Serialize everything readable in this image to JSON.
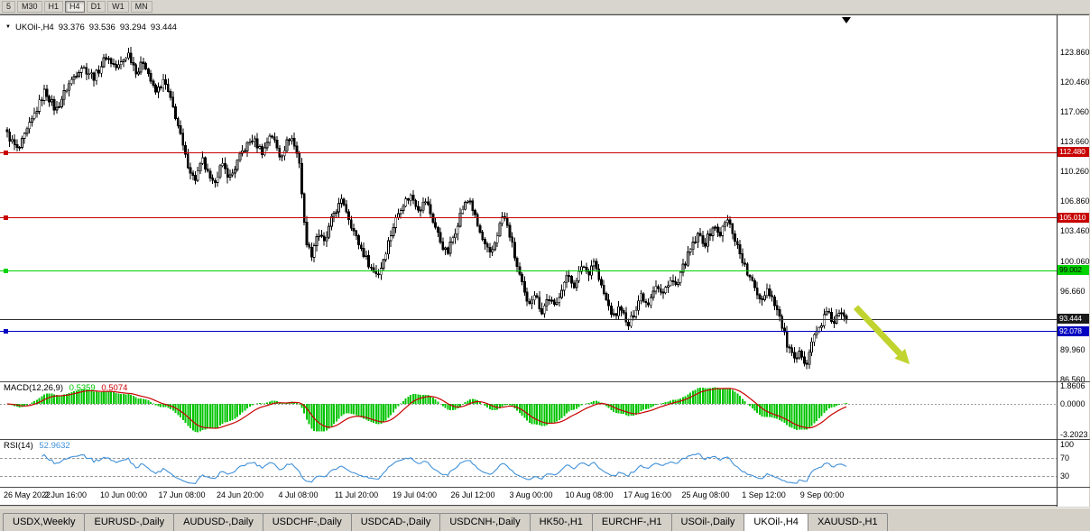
{
  "toolbar": {
    "buttons": [
      {
        "label": "5",
        "active": false
      },
      {
        "label": "M30",
        "active": false
      },
      {
        "label": "H1",
        "active": false
      },
      {
        "label": "H4",
        "active": true
      },
      {
        "label": "D1",
        "active": false
      },
      {
        "label": "W1",
        "active": false
      },
      {
        "label": "MN",
        "active": false
      }
    ]
  },
  "icons": {
    "dropdown": "▼"
  },
  "chart": {
    "symbol_line": {
      "symbol": "UKOil-,H4",
      "open": "93.376",
      "high": "93.536",
      "low": "93.294",
      "close": "93.444"
    }
  },
  "price_axis": {
    "ticks": [
      {
        "label": "123.860",
        "value": 123.86
      },
      {
        "label": "120.460",
        "value": 120.46
      },
      {
        "label": "117.060",
        "value": 117.06
      },
      {
        "label": "113.660",
        "value": 113.66
      },
      {
        "label": "110.260",
        "value": 110.26
      },
      {
        "label": "106.860",
        "value": 106.86
      },
      {
        "label": "103.460",
        "value": 103.46
      },
      {
        "label": "100.060",
        "value": 100.06
      },
      {
        "label": "96.660",
        "value": 96.66
      },
      {
        "label": "89.960",
        "value": 89.96
      },
      {
        "label": "86.560",
        "value": 86.56
      }
    ]
  },
  "hlines": [
    {
      "name": "resistance-upper",
      "label": "112.480",
      "value": 112.48,
      "line_color": "#c80000",
      "badge_bg": "#c80000",
      "text_color": "#ffffff",
      "handle": true
    },
    {
      "name": "resistance-lower",
      "label": "105.010",
      "value": 105.01,
      "line_color": "#c80000",
      "badge_bg": "#c80000",
      "text_color": "#ffffff",
      "handle": true
    },
    {
      "name": "support-green",
      "label": "99.002",
      "value": 99.002,
      "line_color": "#00d200",
      "badge_bg": "#00d200",
      "text_color": "#000000",
      "handle": true
    },
    {
      "name": "current-price",
      "label": "93.444",
      "value": 93.444,
      "line_color": "#2e2e2e",
      "badge_bg": "#1a1a1a",
      "text_color": "#ffffff",
      "handle": false
    },
    {
      "name": "support-blue",
      "label": "92.078",
      "value": 92.078,
      "line_color": "#0000c0",
      "badge_bg": "#0000c0",
      "text_color": "#ffffff",
      "handle": true
    }
  ],
  "macd": {
    "name_label": "MACD(12,26,9)",
    "main_value": "0.5359",
    "signal_value": "0.5074",
    "ticks": [
      {
        "label": "1.8606",
        "value": 1.8606
      },
      {
        "label": "0.0000",
        "value": 0.0
      },
      {
        "label": "-3.2023",
        "value": -3.2023
      }
    ]
  },
  "rsi": {
    "name_label": "RSI(14)",
    "value": "52.9632",
    "levels": [
      70,
      30
    ],
    "ticks": [
      {
        "label": "100",
        "value": 100
      },
      {
        "label": "70",
        "value": 70
      },
      {
        "label": "30",
        "value": 30
      }
    ]
  },
  "time_axis": {
    "labels": [
      "26 May 2022",
      "2 Jun 16:00",
      "10 Jun 00:00",
      "17 Jun 08:00",
      "24 Jun 20:00",
      "4 Jul 08:00",
      "11 Jul 20:00",
      "19 Jul 04:00",
      "26 Jul 12:00",
      "3 Aug 00:00",
      "10 Aug 08:00",
      "17 Aug 16:00",
      "25 Aug 08:00",
      "1 Sep 12:00",
      "9 Sep 00:00"
    ]
  },
  "tabs": {
    "items": [
      {
        "label": "USDX,Weekly",
        "active": false
      },
      {
        "label": "EURUSD-,Daily",
        "active": false
      },
      {
        "label": "AUDUSD-,Daily",
        "active": false
      },
      {
        "label": "USDCHF-,Daily",
        "active": false
      },
      {
        "label": "USDCAD-,Daily",
        "active": false
      },
      {
        "label": "USDCNH-,Daily",
        "active": false
      },
      {
        "label": "HK50-,H1",
        "active": false
      },
      {
        "label": "EURCHF-,H1",
        "active": false
      },
      {
        "label": "USOil-,Daily",
        "active": false
      },
      {
        "label": "UKOil-,H4",
        "active": true
      },
      {
        "label": "XAUUSD-,H1",
        "active": false
      }
    ]
  },
  "annotation_arrow": {
    "color": "#c1d32f",
    "direction": "down-right",
    "from": {
      "x": 0.81,
      "price": 94.8
    },
    "to": {
      "x": 0.861,
      "price": 88.3
    }
  },
  "colors": {
    "hist_green": "#00c400",
    "signal_red": "#c80000",
    "rsi_blue": "#4090d8",
    "candle": "#000000",
    "background": "#ffffff",
    "frame_gray": "#d4d0c8"
  },
  "chart_data": {
    "type": "candlestick",
    "symbol": "UKOil-",
    "timeframe": "H4",
    "candle_count": 340,
    "ohlc_current": {
      "open": 93.376,
      "high": 93.536,
      "low": 93.294,
      "close": 93.444
    },
    "ylim": [
      86.0,
      128.0
    ],
    "series_span_fraction": 0.794,
    "horizontal_levels": [
      112.48,
      105.01,
      99.002,
      93.444,
      92.078
    ],
    "indicators": [
      {
        "name": "MACD",
        "params": [
          12,
          26,
          9
        ],
        "current_main": 0.5359,
        "current_signal": 0.5074,
        "scale_max": 1.8606,
        "scale_min": -3.2023
      },
      {
        "name": "RSI",
        "params": [
          14
        ],
        "current": 52.9632,
        "levels": [
          70,
          30
        ],
        "range": [
          0,
          100
        ]
      }
    ],
    "price_path_keyframes": [
      [
        0.0,
        114.5
      ],
      [
        0.013,
        112.6
      ],
      [
        0.029,
        116.0
      ],
      [
        0.045,
        119.5
      ],
      [
        0.058,
        117.2
      ],
      [
        0.072,
        120.0
      ],
      [
        0.088,
        122.3
      ],
      [
        0.104,
        121.0
      ],
      [
        0.118,
        123.4
      ],
      [
        0.131,
        122.0
      ],
      [
        0.144,
        123.8
      ],
      [
        0.155,
        121.5
      ],
      [
        0.163,
        123.0
      ],
      [
        0.176,
        119.2
      ],
      [
        0.187,
        120.6
      ],
      [
        0.201,
        116.5
      ],
      [
        0.212,
        112.0
      ],
      [
        0.223,
        109.2
      ],
      [
        0.233,
        111.5
      ],
      [
        0.244,
        108.6
      ],
      [
        0.255,
        111.0
      ],
      [
        0.266,
        109.6
      ],
      [
        0.28,
        112.5
      ],
      [
        0.292,
        114.0
      ],
      [
        0.305,
        112.4
      ],
      [
        0.314,
        114.8
      ],
      [
        0.325,
        112.0
      ],
      [
        0.338,
        114.4
      ],
      [
        0.348,
        111.5
      ],
      [
        0.355,
        103.0
      ],
      [
        0.362,
        100.6
      ],
      [
        0.37,
        103.4
      ],
      [
        0.378,
        102.0
      ],
      [
        0.389,
        105.5
      ],
      [
        0.4,
        107.0
      ],
      [
        0.409,
        104.5
      ],
      [
        0.417,
        102.4
      ],
      [
        0.427,
        100.5
      ],
      [
        0.435,
        99.0
      ],
      [
        0.443,
        98.6
      ],
      [
        0.452,
        101.5
      ],
      [
        0.46,
        104.0
      ],
      [
        0.47,
        106.5
      ],
      [
        0.481,
        107.5
      ],
      [
        0.491,
        106.0
      ],
      [
        0.499,
        107.0
      ],
      [
        0.508,
        104.5
      ],
      [
        0.516,
        102.4
      ],
      [
        0.524,
        100.8
      ],
      [
        0.532,
        103.0
      ],
      [
        0.542,
        106.0
      ],
      [
        0.551,
        107.2
      ],
      [
        0.559,
        104.5
      ],
      [
        0.568,
        102.0
      ],
      [
        0.576,
        100.6
      ],
      [
        0.585,
        103.5
      ],
      [
        0.591,
        105.4
      ],
      [
        0.599,
        103.0
      ],
      [
        0.606,
        100.0
      ],
      [
        0.613,
        97.5
      ],
      [
        0.62,
        95.0
      ],
      [
        0.628,
        96.5
      ],
      [
        0.637,
        94.3
      ],
      [
        0.645,
        96.0
      ],
      [
        0.653,
        94.6
      ],
      [
        0.66,
        97.0
      ],
      [
        0.669,
        98.5
      ],
      [
        0.677,
        97.1
      ],
      [
        0.685,
        99.8
      ],
      [
        0.692,
        98.6
      ],
      [
        0.699,
        100.2
      ],
      [
        0.706,
        97.6
      ],
      [
        0.714,
        95.5
      ],
      [
        0.723,
        93.6
      ],
      [
        0.731,
        95.0
      ],
      [
        0.739,
        92.4
      ],
      [
        0.746,
        94.0
      ],
      [
        0.755,
        96.3
      ],
      [
        0.763,
        95.1
      ],
      [
        0.772,
        97.5
      ],
      [
        0.781,
        96.1
      ],
      [
        0.789,
        98.0
      ],
      [
        0.798,
        97.1
      ],
      [
        0.806,
        99.5
      ],
      [
        0.815,
        101.5
      ],
      [
        0.824,
        103.0
      ],
      [
        0.832,
        102.1
      ],
      [
        0.841,
        104.0
      ],
      [
        0.849,
        103.1
      ],
      [
        0.858,
        104.8
      ],
      [
        0.864,
        103.5
      ],
      [
        0.873,
        101.0
      ],
      [
        0.882,
        98.6
      ],
      [
        0.89,
        97.1
      ],
      [
        0.899,
        95.6
      ],
      [
        0.905,
        97.0
      ],
      [
        0.914,
        95.5
      ],
      [
        0.922,
        93.1
      ],
      [
        0.929,
        90.6
      ],
      [
        0.938,
        88.6
      ],
      [
        0.946,
        89.6
      ],
      [
        0.952,
        88.4
      ],
      [
        0.959,
        91.0
      ],
      [
        0.968,
        92.5
      ],
      [
        0.976,
        94.2
      ],
      [
        0.985,
        93.1
      ],
      [
        0.991,
        94.0
      ],
      [
        1.0,
        93.444
      ]
    ]
  }
}
